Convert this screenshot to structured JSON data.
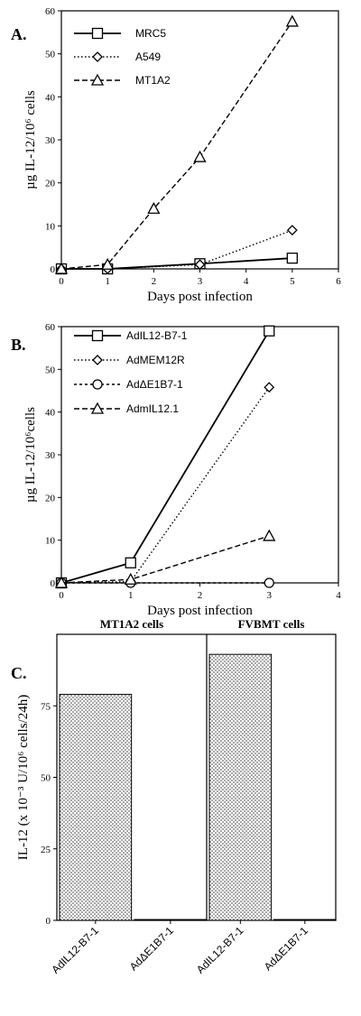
{
  "chart_data": [
    {
      "panel": "A.",
      "type": "line",
      "xlabel": "Days post infection",
      "ylabel": "µg IL-12/10⁶ cells",
      "xlim": [
        0,
        6
      ],
      "ylim": [
        0,
        60
      ],
      "xticks": [
        0,
        1,
        2,
        3,
        4,
        5,
        6
      ],
      "yticks": [
        0,
        10,
        20,
        30,
        40,
        50,
        60
      ],
      "grid": false,
      "legend": "top-left",
      "series": [
        {
          "name": "MRC5",
          "marker": "square",
          "dash": "solid",
          "x": [
            0,
            1,
            3,
            5
          ],
          "y": [
            0,
            0,
            1.2,
            2.5
          ]
        },
        {
          "name": "A549",
          "marker": "diamond",
          "dash": "dotted",
          "x": [
            0,
            1,
            3,
            5
          ],
          "y": [
            0,
            0,
            1,
            9
          ]
        },
        {
          "name": "MT1A2",
          "marker": "triangle",
          "dash": "dashed",
          "x": [
            0,
            1,
            2,
            3,
            5
          ],
          "y": [
            0,
            1,
            14,
            26,
            57.5
          ]
        }
      ]
    },
    {
      "panel": "B.",
      "type": "line",
      "xlabel": "Days post infection",
      "ylabel": "µg IL-12/10⁶cells",
      "xlim": [
        0,
        4
      ],
      "ylim": [
        0,
        60
      ],
      "xticks": [
        0,
        1,
        2,
        3,
        4
      ],
      "yticks": [
        0,
        10,
        20,
        30,
        40,
        50,
        60
      ],
      "grid": false,
      "legend": "top-left",
      "series": [
        {
          "name": "AdIL12-B7-1",
          "marker": "square",
          "dash": "solid",
          "x": [
            0,
            1,
            3
          ],
          "y": [
            0,
            4.7,
            59
          ]
        },
        {
          "name": "AdMEM12R",
          "marker": "diamond",
          "dash": "dotted",
          "x": [
            0,
            1,
            3
          ],
          "y": [
            0,
            0.3,
            45.8
          ]
        },
        {
          "name": "AdΔE1B7-1",
          "marker": "circle",
          "dash": "dashdot",
          "x": [
            0,
            1,
            3
          ],
          "y": [
            0,
            0,
            0
          ]
        },
        {
          "name": "AdmIL12.1",
          "marker": "triangle",
          "dash": "dashed",
          "x": [
            0,
            1,
            3
          ],
          "y": [
            0,
            0.8,
            11
          ]
        }
      ]
    },
    {
      "panel": "C.",
      "type": "bar",
      "ylabel": "IL-12 (x 10⁻³ U/10⁶ cells/24h)",
      "ylim": [
        0,
        100
      ],
      "yticks": [
        0,
        25,
        50,
        75
      ],
      "grid": false,
      "groups": [
        {
          "name": "MT1A2 cells",
          "categories": [
            "AdIL12-B7-1",
            "AdΔE1B7-1"
          ],
          "values": [
            79,
            0.3
          ]
        },
        {
          "name": "FVBMT cells",
          "categories": [
            "AdIL12-B7-1",
            "AdΔE1B7-1"
          ],
          "values": [
            93,
            0.3
          ]
        }
      ]
    }
  ]
}
